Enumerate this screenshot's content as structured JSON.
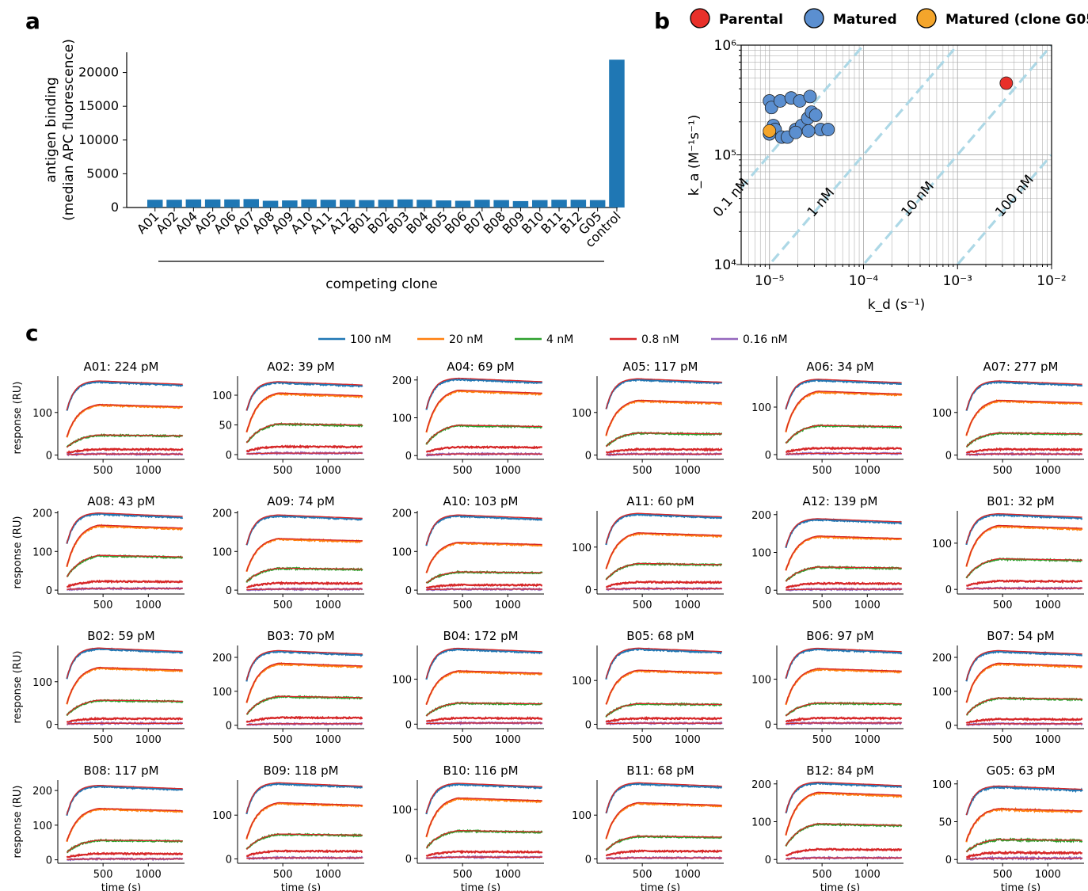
{
  "chart_data": [
    {
      "panel": "a",
      "type": "bar",
      "xlabel": "competing clone",
      "ylabel_lines": [
        "antigen binding",
        "(median APC fluorescence)"
      ],
      "ylim": [
        0,
        23000
      ],
      "yticks": [
        0,
        5000,
        10000,
        15000,
        20000
      ],
      "categories": [
        "A01",
        "A02",
        "A04",
        "A05",
        "A06",
        "A07",
        "A08",
        "A09",
        "A10",
        "A11",
        "A12",
        "B01",
        "B02",
        "B03",
        "B04",
        "B05",
        "B06",
        "B07",
        "B08",
        "B09",
        "B10",
        "B11",
        "B12",
        "G05",
        "control"
      ],
      "values": [
        1150,
        1150,
        1200,
        1200,
        1200,
        1250,
        1000,
        1050,
        1200,
        1150,
        1150,
        1100,
        1150,
        1200,
        1150,
        1050,
        1000,
        1150,
        1100,
        950,
        1100,
        1150,
        1150,
        1100,
        21900
      ],
      "color": "#1f77b4"
    },
    {
      "panel": "b",
      "type": "scatter",
      "x_scale": "log",
      "y_scale": "log",
      "xlim": [
        5e-06,
        0.01
      ],
      "ylim": [
        10000.0,
        1000000.0
      ],
      "xticks": [
        "10⁻⁵",
        "10⁻⁴",
        "10⁻³",
        "10⁻²"
      ],
      "yticks": [
        "10⁴",
        "10⁵",
        "10⁶"
      ],
      "grid": true,
      "legend_position": "top",
      "series": [
        {
          "name": "Parental",
          "color": "#e8302a",
          "points": [
            [
              0.0033,
              450000
            ]
          ]
        },
        {
          "name": "Matured",
          "color": "#5b8fd0",
          "points": [
            [
              1e-05,
              310000
            ],
            [
              1.05e-05,
              270000
            ],
            [
              1.3e-05,
              310000
            ],
            [
              1.7e-05,
              330000
            ],
            [
              2.1e-05,
              310000
            ],
            [
              2.7e-05,
              340000
            ],
            [
              1.1e-05,
              185000
            ],
            [
              1.15e-05,
              170000
            ],
            [
              1e-05,
              155000
            ],
            [
              1.35e-05,
              145000
            ],
            [
              1.55e-05,
              145000
            ],
            [
              1.9e-05,
              170000
            ],
            [
              2.2e-05,
              185000
            ],
            [
              2.55e-05,
              215000
            ],
            [
              2.8e-05,
              245000
            ],
            [
              3.1e-05,
              230000
            ],
            [
              3.5e-05,
              170000
            ],
            [
              4.2e-05,
              170000
            ],
            [
              1.9e-05,
              160000
            ],
            [
              2.6e-05,
              165000
            ]
          ]
        },
        {
          "name": "Matured (clone G05)",
          "color": "#f4a52b",
          "points": [
            [
              1e-05,
              165000
            ]
          ]
        }
      ],
      "iso_kd_lines": [
        {
          "label": "0.1 nM",
          "kd_nM": 0.1
        },
        {
          "label": "1 nM",
          "kd_nM": 1
        },
        {
          "label": "10 nM",
          "kd_nM": 10
        },
        {
          "label": "100 nM",
          "kd_nM": 100
        }
      ]
    },
    {
      "panel": "c",
      "type": "line",
      "xlabel": "time (s)",
      "ylabel": "response (RU)",
      "xlim": [
        0,
        1400
      ],
      "xticks": [
        500,
        1000
      ],
      "association_end_s": 450,
      "legend": [
        {
          "name": "100 nM",
          "color": "#1f77b4"
        },
        {
          "name": "20 nM",
          "color": "#ff7f0e"
        },
        {
          "name": "4 nM",
          "color": "#2ca02c"
        },
        {
          "name": "0.8 nM",
          "color": "#d62728"
        },
        {
          "name": "0.16 nM",
          "color": "#9467bd"
        }
      ],
      "fit_color": "#d62728",
      "subplots": [
        {
          "title": "A01: 224 pM",
          "ylim": [
            -10,
            185
          ],
          "yticks": [
            0,
            100
          ],
          "plateaus": [
            170,
            120,
            50,
            15,
            3
          ]
        },
        {
          "title": "A02: 39 pM",
          "ylim": [
            -8,
            132
          ],
          "yticks": [
            0,
            50,
            100
          ],
          "plateaus": [
            120,
            105,
            55,
            15,
            3
          ]
        },
        {
          "title": "A04: 69 pM",
          "ylim": [
            -10,
            210
          ],
          "yticks": [
            0,
            100,
            200
          ],
          "plateaus": [
            200,
            175,
            85,
            25,
            5
          ]
        },
        {
          "title": "A05: 117 pM",
          "ylim": [
            -10,
            185
          ],
          "yticks": [
            0,
            100
          ],
          "plateaus": [
            175,
            130,
            55,
            15,
            3
          ]
        },
        {
          "title": "A06: 34 pM",
          "ylim": [
            -10,
            165
          ],
          "yticks": [
            0,
            100
          ],
          "plateaus": [
            155,
            135,
            65,
            15,
            3
          ]
        },
        {
          "title": "A07: 277 pM",
          "ylim": [
            -10,
            185
          ],
          "yticks": [
            0,
            100
          ],
          "plateaus": [
            170,
            130,
            55,
            15,
            3
          ]
        },
        {
          "title": "A08: 43 pM",
          "ylim": [
            -10,
            205
          ],
          "yticks": [
            0,
            100,
            200
          ],
          "plateaus": [
            195,
            170,
            95,
            25,
            5
          ]
        },
        {
          "title": "A09: 74 pM",
          "ylim": [
            -10,
            205
          ],
          "yticks": [
            0,
            100,
            200
          ],
          "plateaus": [
            190,
            135,
            60,
            20,
            3
          ]
        },
        {
          "title": "A10: 103 pM",
          "ylim": [
            -10,
            205
          ],
          "yticks": [
            0,
            100,
            200
          ],
          "plateaus": [
            190,
            125,
            50,
            15,
            3
          ]
        },
        {
          "title": "A11: 60 pM",
          "ylim": [
            -10,
            185
          ],
          "yticks": [
            0,
            100
          ],
          "plateaus": [
            175,
            135,
            65,
            20,
            3
          ]
        },
        {
          "title": "A12: 139 pM",
          "ylim": [
            -10,
            210
          ],
          "yticks": [
            0,
            100,
            200
          ],
          "plateaus": [
            185,
            145,
            65,
            20,
            3
          ]
        },
        {
          "title": "B01: 32 pM",
          "ylim": [
            -10,
            170
          ],
          "yticks": [
            0,
            100
          ],
          "plateaus": [
            160,
            140,
            70,
            20,
            3
          ]
        },
        {
          "title": "B02: 59 pM",
          "ylim": [
            -10,
            185
          ],
          "yticks": [
            0,
            100
          ],
          "plateaus": [
            175,
            135,
            60,
            15,
            3
          ]
        },
        {
          "title": "B03: 70 pM",
          "ylim": [
            -10,
            235
          ],
          "yticks": [
            0,
            100,
            200
          ],
          "plateaus": [
            215,
            185,
            90,
            25,
            5
          ]
        },
        {
          "title": "B04: 172 pM",
          "ylim": [
            -10,
            175
          ],
          "yticks": [
            0,
            100
          ],
          "plateaus": [
            165,
            120,
            50,
            15,
            3
          ]
        },
        {
          "title": "B05: 68 pM",
          "ylim": [
            -10,
            180
          ],
          "yticks": [
            0,
            100
          ],
          "plateaus": [
            170,
            125,
            50,
            15,
            3
          ]
        },
        {
          "title": "B06: 97 pM",
          "ylim": [
            -10,
            175
          ],
          "yticks": [
            0,
            100
          ],
          "plateaus": [
            165,
            125,
            50,
            15,
            3
          ]
        },
        {
          "title": "B07: 54 pM",
          "ylim": [
            -10,
            235
          ],
          "yticks": [
            0,
            100,
            200
          ],
          "plateaus": [
            215,
            185,
            85,
            20,
            5
          ]
        },
        {
          "title": "B08: 117 pM",
          "ylim": [
            -10,
            230
          ],
          "yticks": [
            0,
            100,
            200
          ],
          "plateaus": [
            210,
            150,
            60,
            20,
            3
          ]
        },
        {
          "title": "B09: 118 pM",
          "ylim": [
            -10,
            180
          ],
          "yticks": [
            0,
            100
          ],
          "plateaus": [
            170,
            130,
            60,
            20,
            3
          ]
        },
        {
          "title": "B10: 116 pM",
          "ylim": [
            -10,
            160
          ],
          "yticks": [
            0,
            100
          ],
          "plateaus": [
            150,
            125,
            60,
            15,
            3
          ]
        },
        {
          "title": "B11: 68 pM",
          "ylim": [
            -10,
            180
          ],
          "yticks": [
            0,
            100
          ],
          "plateaus": [
            170,
            130,
            55,
            20,
            3
          ]
        },
        {
          "title": "B12: 84 pM",
          "ylim": [
            -10,
            210
          ],
          "yticks": [
            0,
            100,
            200
          ],
          "plateaus": [
            200,
            180,
            100,
            30,
            5
          ]
        },
        {
          "title": "G05: 63 pM",
          "ylim": [
            -5,
            105
          ],
          "yticks": [
            0,
            50,
            100
          ],
          "plateaus": [
            95,
            68,
            28,
            10,
            2
          ]
        }
      ]
    }
  ],
  "panel_labels": {
    "a": "a",
    "b": "b",
    "c": "c"
  },
  "b_axis": {
    "ylabel": "k_a (M⁻¹s⁻¹)",
    "xlabel": "k_d (s⁻¹)"
  }
}
